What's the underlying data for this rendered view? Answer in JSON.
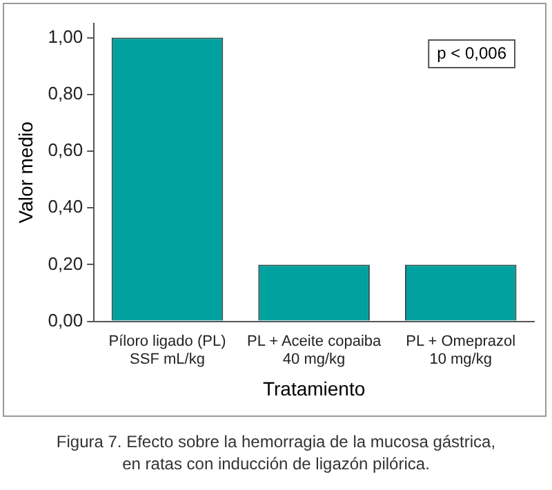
{
  "chart_data": {
    "type": "bar",
    "xlabel": "Tratamiento",
    "ylabel": "Valor medio",
    "categories": [
      "Píloro ligado (PL)\nSSF mL/kg",
      "PL + Aceite copaiba\n40 mg/kg",
      "PL + Omeprazol\n10 mg/kg"
    ],
    "values": [
      1.0,
      0.2,
      0.2
    ],
    "color": "#00a19e",
    "ylim": [
      0,
      1.05
    ],
    "yticks": [
      {
        "value": 0,
        "label": "0,00"
      },
      {
        "value": 0.2,
        "label": "0,20"
      },
      {
        "value": 0.4,
        "label": "0,40"
      },
      {
        "value": 0.6,
        "label": "0,60"
      },
      {
        "value": 0.8,
        "label": "0,80"
      },
      {
        "value": 1,
        "label": "1,00"
      }
    ],
    "grid": false,
    "legend": false,
    "annotations": [
      "p < 0,006",
      "Figura 7. Efecto sobre la hemorragia de la mucosa gástrica,\nen ratas con inducción de ligazón pilórica."
    ]
  }
}
